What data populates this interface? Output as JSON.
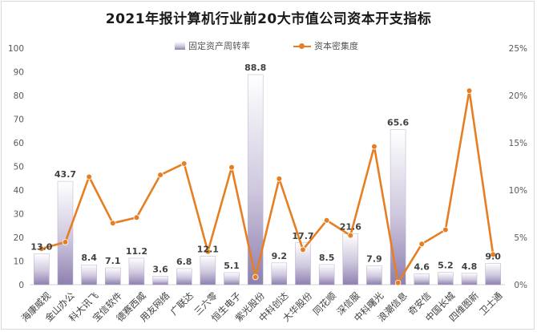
{
  "chart_data": {
    "type": "bar",
    "title": "2021年报计算机行业前20大市值公司资本开支指标",
    "categories": [
      "海康威视",
      "金山办公",
      "科大讯飞",
      "宝信软件",
      "德赛西威",
      "用友网络",
      "广联达",
      "三六零",
      "恒生电子",
      "紫光股份",
      "中科创达",
      "大华股份",
      "同花顺",
      "深信服",
      "中科曙光",
      "浪潮信息",
      "奇安信",
      "中国长城",
      "四维图新",
      "卫士通"
    ],
    "series": [
      {
        "name": "固定资产周转率",
        "type": "bar",
        "axis": "left",
        "values": [
          13.0,
          43.7,
          8.4,
          7.1,
          11.2,
          3.6,
          6.8,
          12.1,
          5.1,
          88.8,
          9.2,
          17.7,
          8.5,
          21.6,
          7.9,
          65.6,
          4.6,
          5.2,
          4.8,
          9.0
        ],
        "labels": [
          "13.0",
          "43.7",
          "8.4",
          "7.1",
          "11.2",
          "3.6",
          "6.8",
          "12.1",
          "5.1",
          "88.8",
          "9.2",
          "17.7",
          "8.5",
          "21.6",
          "7.9",
          "65.6",
          "4.6",
          "5.2",
          "4.8",
          "9.0"
        ]
      },
      {
        "name": "资本密集度",
        "type": "line",
        "axis": "right",
        "values": [
          3.8,
          4.5,
          11.4,
          6.5,
          7.1,
          11.6,
          12.8,
          3.5,
          12.4,
          0.8,
          11.2,
          3.7,
          6.8,
          5.2,
          14.6,
          0.2,
          4.3,
          5.8,
          20.5,
          3.2
        ]
      }
    ],
    "y_left": {
      "ylim": [
        0,
        100
      ],
      "ticks": [
        "0",
        "10",
        "20",
        "30",
        "40",
        "50",
        "60",
        "70",
        "80",
        "90",
        "100"
      ]
    },
    "y_right": {
      "ylim": [
        0,
        25
      ],
      "ticks": [
        "0%",
        "5%",
        "10%",
        "15%",
        "20%",
        "25%"
      ]
    },
    "grid": false,
    "legend_position": "top-center",
    "colors": {
      "bar_top": "#ffffff",
      "bar_bottom": "#8e7fb0",
      "line": "#e67e22"
    }
  }
}
